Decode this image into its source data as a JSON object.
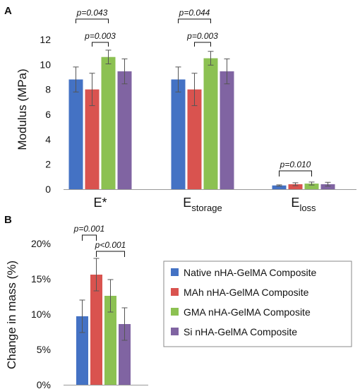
{
  "colors": {
    "Native nHA-GelMA Composite": "#4472c4",
    "MAh nHA-GelMA Composite": "#d9534f",
    "GMA nHA-GelMA Composite": "#8cc152",
    "Si nHA-GelMA Composite": "#8064a2"
  },
  "panels": {
    "a_letter": "A",
    "b_letter": "B"
  },
  "chart_data": [
    {
      "type": "bar",
      "panel": "A",
      "ylabel": "Modulus (MPa)",
      "ylim": [
        0,
        12
      ],
      "yticks": [
        "0",
        "2",
        "4",
        "6",
        "8",
        "10",
        "12"
      ],
      "categories": [
        {
          "main": "E*",
          "sub": ""
        },
        {
          "main": "E",
          "sub": "storage"
        },
        {
          "main": "E",
          "sub": "loss"
        }
      ],
      "series": [
        {
          "name": "Native nHA-GelMA Composite",
          "values": [
            8.8,
            8.8,
            0.3
          ],
          "errors": [
            1.0,
            1.0,
            0.05
          ]
        },
        {
          "name": "MAh nHA-GelMA Composite",
          "values": [
            8.0,
            8.0,
            0.4
          ],
          "errors": [
            1.3,
            1.3,
            0.12
          ]
        },
        {
          "name": "GMA nHA-GelMA Composite",
          "values": [
            10.6,
            10.5,
            0.45
          ],
          "errors": [
            0.55,
            0.55,
            0.12
          ]
        },
        {
          "name": "Si nHA-GelMA Composite",
          "values": [
            9.45,
            9.45,
            0.4
          ],
          "errors": [
            1.0,
            1.0,
            0.15
          ]
        }
      ],
      "annotations": [
        {
          "label": "p=0.043",
          "category": 0,
          "from_series": 0,
          "to_series": 2
        },
        {
          "label": "p=0.003",
          "category": 0,
          "from_series": 1,
          "to_series": 2
        },
        {
          "label": "p=0.044",
          "category": 1,
          "from_series": 0,
          "to_series": 2
        },
        {
          "label": "p=0.003",
          "category": 1,
          "from_series": 1,
          "to_series": 2
        },
        {
          "label": "p=0.010",
          "category": 2,
          "from_series": 0,
          "to_series": 2
        }
      ]
    },
    {
      "type": "bar",
      "panel": "B",
      "ylabel": "Change in mass (%)",
      "ylim": [
        0,
        20
      ],
      "yticks": [
        "0%",
        "5%",
        "10%",
        "15%",
        "20%"
      ],
      "series": [
        {
          "name": "Native nHA-GelMA Composite",
          "value": 9.7,
          "error": 2.3
        },
        {
          "name": "MAh nHA-GelMA Composite",
          "value": 15.6,
          "error": 2.3
        },
        {
          "name": "GMA nHA-GelMA Composite",
          "value": 12.6,
          "error": 2.3
        },
        {
          "name": "Si nHA-GelMA Composite",
          "value": 8.6,
          "error": 2.3
        }
      ],
      "annotations": [
        {
          "label": "p=0.001",
          "from_series": 0,
          "to_series": 1
        },
        {
          "label": "p<0.001",
          "from_series": 1,
          "to_series": 3
        }
      ],
      "legend": [
        "Native nHA-GelMA Composite",
        "MAh nHA-GelMA Composite",
        "GMA nHA-GelMA Composite",
        "Si nHA-GelMA Composite"
      ]
    }
  ]
}
